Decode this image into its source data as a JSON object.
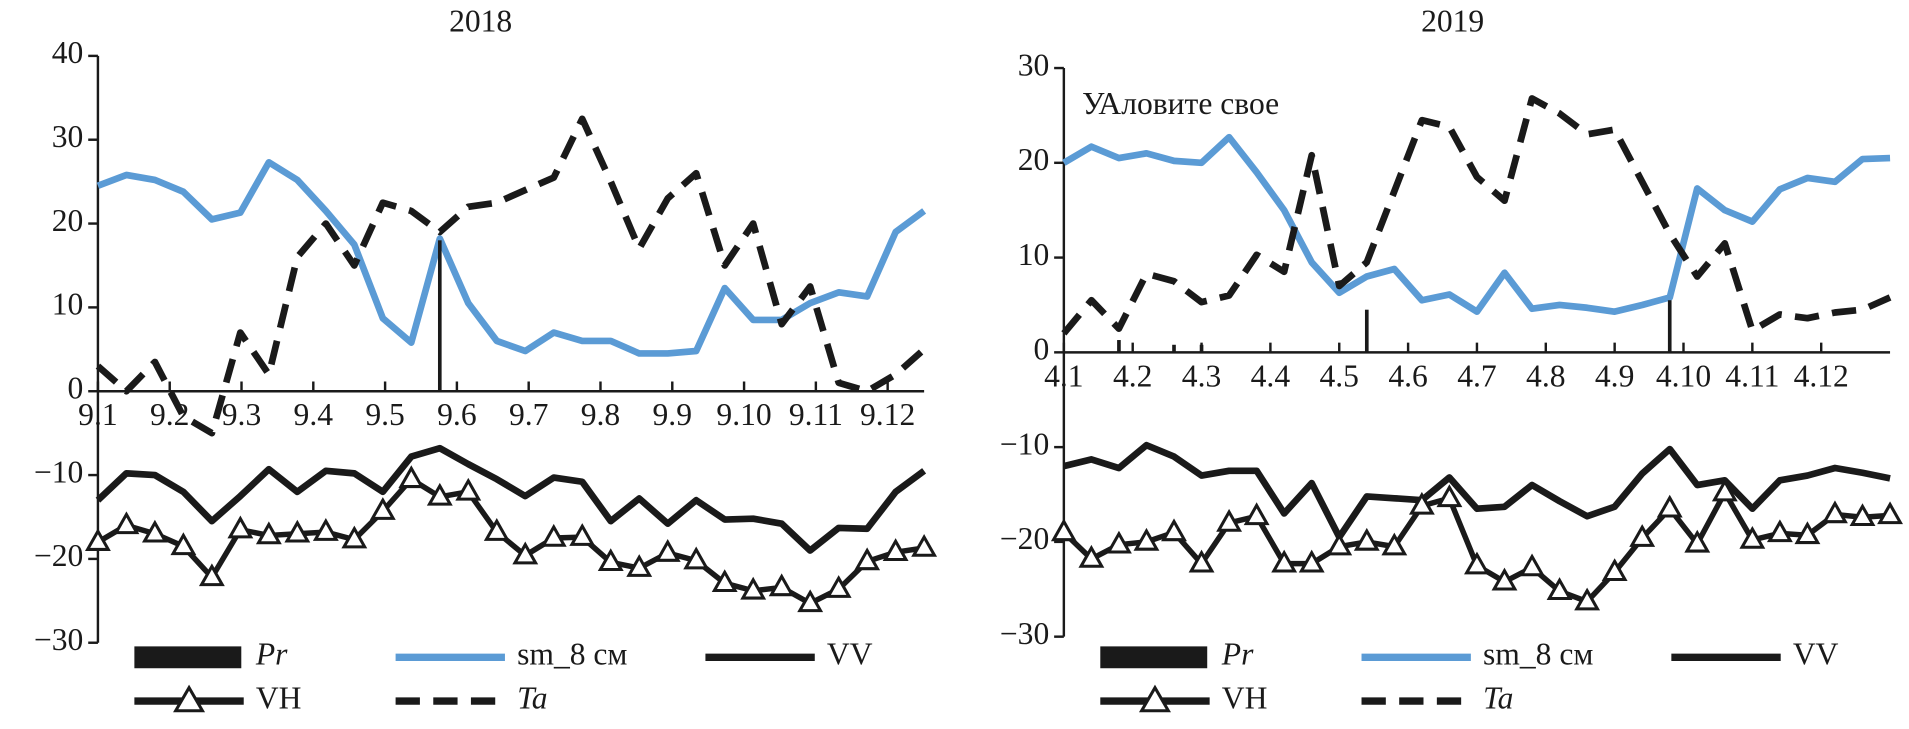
{
  "chart_data": [
    {
      "type": "line",
      "title": "2018",
      "x": [
        0,
        1,
        2,
        3,
        4,
        5,
        6,
        7,
        8,
        9,
        10,
        11,
        12,
        13,
        14,
        15,
        16,
        17,
        18,
        19,
        20,
        21,
        22,
        23,
        24,
        25,
        26,
        27,
        28,
        29
      ],
      "xlim": [
        0,
        29
      ],
      "xticks": [
        {
          "value": 0,
          "label": "9.1"
        },
        {
          "value": 2.52,
          "label": "9.2"
        },
        {
          "value": 5.04,
          "label": "9.3"
        },
        {
          "value": 7.56,
          "label": "9.4"
        },
        {
          "value": 10.08,
          "label": "9.5"
        },
        {
          "value": 12.6,
          "label": "9.6"
        },
        {
          "value": 15.12,
          "label": "9.7"
        },
        {
          "value": 17.64,
          "label": "9.8"
        },
        {
          "value": 20.16,
          "label": "9.9"
        },
        {
          "value": 22.68,
          "label": "9.10"
        },
        {
          "value": 25.2,
          "label": "9.11"
        },
        {
          "value": 27.72,
          "label": "9.12"
        }
      ],
      "ylim": [
        -30,
        40
      ],
      "yticks": [
        40,
        30,
        20,
        10,
        0,
        {
          "value": -10,
          "label": "−10"
        },
        {
          "value": -20,
          "label": "−20"
        },
        {
          "value": -30,
          "label": "−30"
        }
      ],
      "series": [
        {
          "name": "Pr",
          "color": "#1a1a1a",
          "kind": "bar",
          "italic": true,
          "values": [
            null,
            null,
            null,
            null,
            null,
            null,
            null,
            null,
            null,
            null,
            null,
            null,
            18,
            null,
            null,
            null,
            null,
            null,
            null,
            null,
            null,
            null,
            null,
            null,
            null,
            null,
            null,
            null,
            null,
            null
          ]
        },
        {
          "name": "sm_8 см",
          "color": "#5b9bd5",
          "values": [
            24.5,
            25.8,
            25.2,
            23.8,
            20.5,
            21.3,
            27.3,
            25.2,
            21.5,
            17.5,
            8.7,
            5.8,
            18.2,
            10.5,
            6,
            4.8,
            7,
            6,
            6,
            4.5,
            4.5,
            4.8,
            12.3,
            8.5,
            8.5,
            10.5,
            11.8,
            11.3,
            19,
            21.5
          ]
        },
        {
          "name": "VV",
          "color": "#1a1a1a",
          "values": [
            -13,
            -9.8,
            -10,
            -12,
            -15.5,
            -12.5,
            -9.3,
            -12,
            -9.5,
            -9.8,
            -12,
            -7.8,
            -6.8,
            -8.7,
            -10.5,
            -12.5,
            -10.3,
            -10.8,
            -15.5,
            -12.8,
            -15.8,
            -13,
            -15.3,
            -15.2,
            -15.8,
            -19,
            -16.3,
            -16.4,
            -12,
            -9.5
          ]
        },
        {
          "name": "VH",
          "color": "#1a1a1a",
          "marker": "triangle",
          "values": [
            -18,
            -16,
            -17,
            -18.5,
            -22.2,
            -16.5,
            -17.2,
            -17,
            -16.8,
            -17.7,
            -14.3,
            -10.5,
            -12.6,
            -12,
            -16.8,
            -19.6,
            -17.5,
            -17.4,
            -20.4,
            -21.1,
            -19.3,
            -20.2,
            -22.9,
            -23.8,
            -23.4,
            -25.3,
            -23.6,
            -20.3,
            -19.2,
            -18.7
          ]
        },
        {
          "name": "Ta",
          "color": "#1a1a1a",
          "dash": true,
          "italic": true,
          "values": [
            3,
            0,
            3.5,
            -3,
            -5,
            7,
            2,
            16,
            20,
            15,
            22.5,
            21.5,
            19,
            22,
            22.5,
            24,
            25.5,
            32.5,
            25,
            17,
            23,
            26,
            15,
            20,
            8,
            12.5,
            1,
            0,
            2,
            5
          ]
        }
      ]
    },
    {
      "type": "line",
      "title": "2019",
      "annotation": "УАловите свое",
      "x": [
        0,
        1,
        2,
        3,
        4,
        5,
        6,
        7,
        8,
        9,
        10,
        11,
        12,
        13,
        14,
        15,
        16,
        17,
        18,
        19,
        20,
        21,
        22,
        23,
        24,
        25,
        26,
        27,
        28,
        29,
        30
      ],
      "xlim": [
        0,
        30
      ],
      "xticks": [
        {
          "value": 0,
          "label": "4.1"
        },
        {
          "value": 2.5,
          "label": "4.2"
        },
        {
          "value": 5,
          "label": "4.3"
        },
        {
          "value": 7.5,
          "label": "4.4"
        },
        {
          "value": 10,
          "label": "4.5"
        },
        {
          "value": 12.5,
          "label": "4.6"
        },
        {
          "value": 15,
          "label": "4.7"
        },
        {
          "value": 17.5,
          "label": "4.8"
        },
        {
          "value": 20,
          "label": "4.9"
        },
        {
          "value": 22.5,
          "label": "4.10"
        },
        {
          "value": 25,
          "label": "4.11"
        },
        {
          "value": 27.5,
          "label": "4.12"
        }
      ],
      "ylim": [
        -30,
        30
      ],
      "yticks": [
        30,
        20,
        10,
        0,
        {
          "value": -10,
          "label": "−10"
        },
        {
          "value": -20,
          "label": "−20"
        },
        {
          "value": -30,
          "label": "−30"
        }
      ],
      "series": [
        {
          "name": "Pr",
          "color": "#1a1a1a",
          "kind": "bar",
          "italic": true,
          "values": [
            null,
            null,
            1.3,
            null,
            0.8,
            0.8,
            null,
            null,
            null,
            null,
            null,
            4.5,
            null,
            null,
            null,
            null,
            null,
            null,
            null,
            null,
            null,
            null,
            5.5,
            null,
            null,
            null,
            null,
            null,
            null,
            null,
            null
          ]
        },
        {
          "name": "sm_8 см",
          "color": "#5b9bd5",
          "values": [
            20,
            21.7,
            20.5,
            21,
            20.2,
            20,
            22.7,
            19,
            15,
            9.5,
            6.3,
            8,
            8.8,
            5.5,
            6.1,
            4.3,
            8.4,
            4.6,
            5,
            4.7,
            4.3,
            5,
            5.8,
            17.3,
            15,
            13.8,
            17.2,
            18.4,
            18,
            20.4,
            20.5
          ]
        },
        {
          "name": "VV",
          "color": "#1a1a1a",
          "values": [
            -12,
            -11.3,
            -12.2,
            -9.8,
            -11,
            -13,
            -12.5,
            -12.5,
            -17,
            -13.8,
            -19.5,
            -15.2,
            -15.4,
            -15.6,
            -13.2,
            -16.5,
            -16.3,
            -14,
            -15.7,
            -17.3,
            -16.3,
            -12.8,
            -10.2,
            -14,
            -13.5,
            -16.5,
            -13.5,
            -13,
            -12.2,
            -12.7,
            -13.3
          ]
        },
        {
          "name": "VH",
          "color": "#1a1a1a",
          "marker": "triangle",
          "values": [
            -19,
            -21.8,
            -20.3,
            -20,
            -19,
            -22.3,
            -18,
            -17.3,
            -22.3,
            -22.3,
            -20.5,
            -20,
            -20.5,
            -16.2,
            -15.4,
            -22.5,
            -24.2,
            -22.7,
            -25.2,
            -26.3,
            -23.2,
            -19.6,
            -16.5,
            -20.2,
            -14.8,
            -19.8,
            -19.1,
            -19.3,
            -17.1,
            -17.4,
            -17.2
          ]
        },
        {
          "name": "Ta",
          "color": "#1a1a1a",
          "dash": true,
          "italic": true,
          "values": [
            2,
            5.5,
            2.5,
            8.3,
            7.5,
            5.3,
            6,
            10.3,
            8.5,
            20.8,
            7,
            9.5,
            17,
            24.5,
            23.8,
            18.5,
            16,
            26.8,
            25.2,
            23,
            23.5,
            18,
            12.5,
            8,
            11.5,
            2.3,
            4,
            3.6,
            4.2,
            4.5,
            5.8
          ]
        }
      ]
    }
  ]
}
